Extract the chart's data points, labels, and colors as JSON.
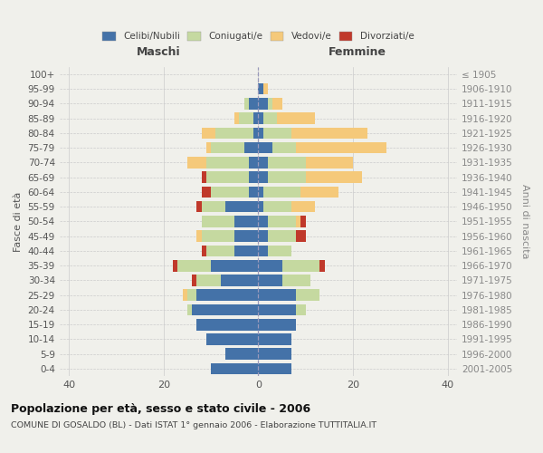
{
  "age_groups": [
    "0-4",
    "5-9",
    "10-14",
    "15-19",
    "20-24",
    "25-29",
    "30-34",
    "35-39",
    "40-44",
    "45-49",
    "50-54",
    "55-59",
    "60-64",
    "65-69",
    "70-74",
    "75-79",
    "80-84",
    "85-89",
    "90-94",
    "95-99",
    "100+"
  ],
  "birth_years": [
    "2001-2005",
    "1996-2000",
    "1991-1995",
    "1986-1990",
    "1981-1985",
    "1976-1980",
    "1971-1975",
    "1966-1970",
    "1961-1965",
    "1956-1960",
    "1951-1955",
    "1946-1950",
    "1941-1945",
    "1936-1940",
    "1931-1935",
    "1926-1930",
    "1921-1925",
    "1916-1920",
    "1911-1915",
    "1906-1910",
    "≤ 1905"
  ],
  "male": {
    "celibi": [
      10,
      7,
      11,
      13,
      14,
      13,
      8,
      10,
      5,
      5,
      5,
      7,
      2,
      2,
      2,
      3,
      1,
      1,
      2,
      0,
      0
    ],
    "coniugati": [
      0,
      0,
      0,
      0,
      1,
      2,
      5,
      7,
      6,
      7,
      7,
      5,
      8,
      9,
      9,
      7,
      8,
      3,
      1,
      0,
      0
    ],
    "vedovi": [
      0,
      0,
      0,
      0,
      0,
      1,
      0,
      0,
      0,
      1,
      0,
      0,
      0,
      0,
      4,
      1,
      3,
      1,
      0,
      0,
      0
    ],
    "divorziati": [
      0,
      0,
      0,
      0,
      0,
      0,
      1,
      1,
      1,
      0,
      0,
      1,
      2,
      1,
      0,
      0,
      0,
      0,
      0,
      0,
      0
    ]
  },
  "female": {
    "nubili": [
      7,
      7,
      7,
      8,
      8,
      8,
      5,
      5,
      2,
      2,
      2,
      1,
      1,
      2,
      2,
      3,
      1,
      1,
      2,
      1,
      0
    ],
    "coniugate": [
      0,
      0,
      0,
      0,
      2,
      5,
      6,
      8,
      5,
      6,
      6,
      6,
      8,
      8,
      8,
      5,
      6,
      3,
      1,
      0,
      0
    ],
    "vedove": [
      0,
      0,
      0,
      0,
      0,
      0,
      0,
      0,
      0,
      0,
      1,
      5,
      8,
      12,
      10,
      19,
      16,
      8,
      2,
      1,
      0
    ],
    "divorziate": [
      0,
      0,
      0,
      0,
      0,
      0,
      0,
      1,
      0,
      2,
      1,
      0,
      0,
      0,
      0,
      0,
      0,
      0,
      0,
      0,
      0
    ]
  },
  "colors": {
    "celibi_nubili": "#4472a8",
    "coniugati_e": "#c5d9a0",
    "vedovi_e": "#f5c97a",
    "divorziati_e": "#c0392b"
  },
  "xlim": 42,
  "title": "Popolazione per età, sesso e stato civile - 2006",
  "subtitle": "COMUNE DI GOSALDO (BL) - Dati ISTAT 1° gennaio 2006 - Elaborazione TUTTITALIA.IT",
  "ylabel_left": "Fasce di età",
  "ylabel_right": "Anni di nascita",
  "xlabel_maschi": "Maschi",
  "xlabel_femmine": "Femmine",
  "bg_color": "#f0f0eb",
  "grid_color": "#cccccc"
}
